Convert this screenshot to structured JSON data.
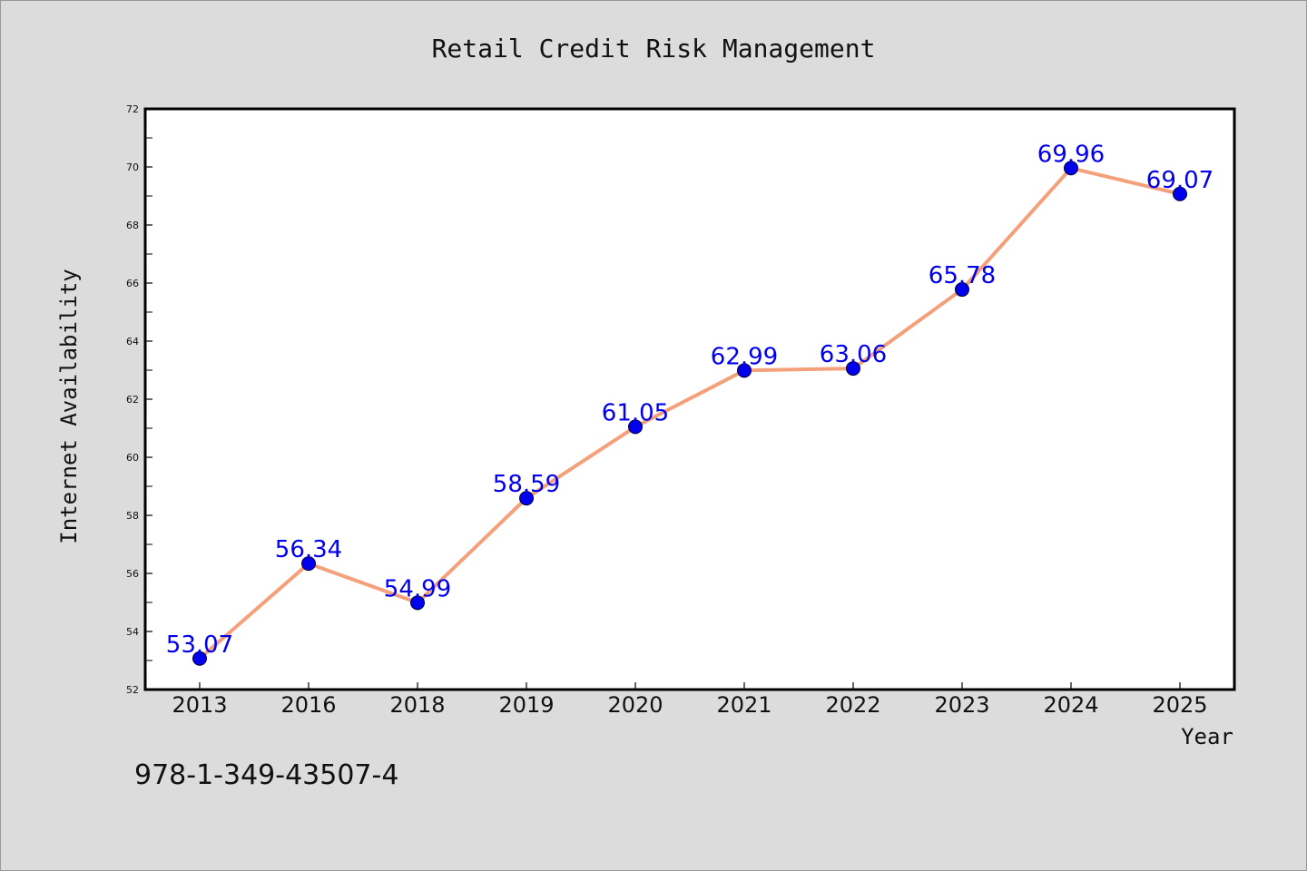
{
  "colors": {
    "background": "#dcdcdc",
    "plot_background": "#ffffff",
    "line": "#f4a07a",
    "marker": "#0000ee",
    "data_label": "#0000ee",
    "axis": "#000000"
  },
  "footer": {
    "isbn": "978-1-349-43507-4"
  },
  "chart_data": {
    "type": "line",
    "title": "Retail Credit Risk Management",
    "xlabel": "Year",
    "ylabel": "Internet Availability",
    "categories": [
      "2013",
      "2016",
      "2018",
      "2019",
      "2020",
      "2021",
      "2022",
      "2023",
      "2024",
      "2025"
    ],
    "series": [
      {
        "values": [
          53.07,
          56.34,
          54.99,
          58.59,
          61.05,
          62.99,
          63.06,
          65.78,
          69.96,
          69.07
        ],
        "labels": [
          "53.07",
          "56.34",
          "54.99",
          "58.59",
          "61.05",
          "62.99",
          "63.06",
          "65.78",
          "69.96",
          "69.07"
        ]
      }
    ],
    "ylim": [
      52,
      72
    ],
    "yticks": [
      "52",
      "54",
      "56",
      "58",
      "60",
      "62",
      "64",
      "66",
      "68",
      "70",
      "72"
    ],
    "grid": false,
    "legend": "none"
  }
}
